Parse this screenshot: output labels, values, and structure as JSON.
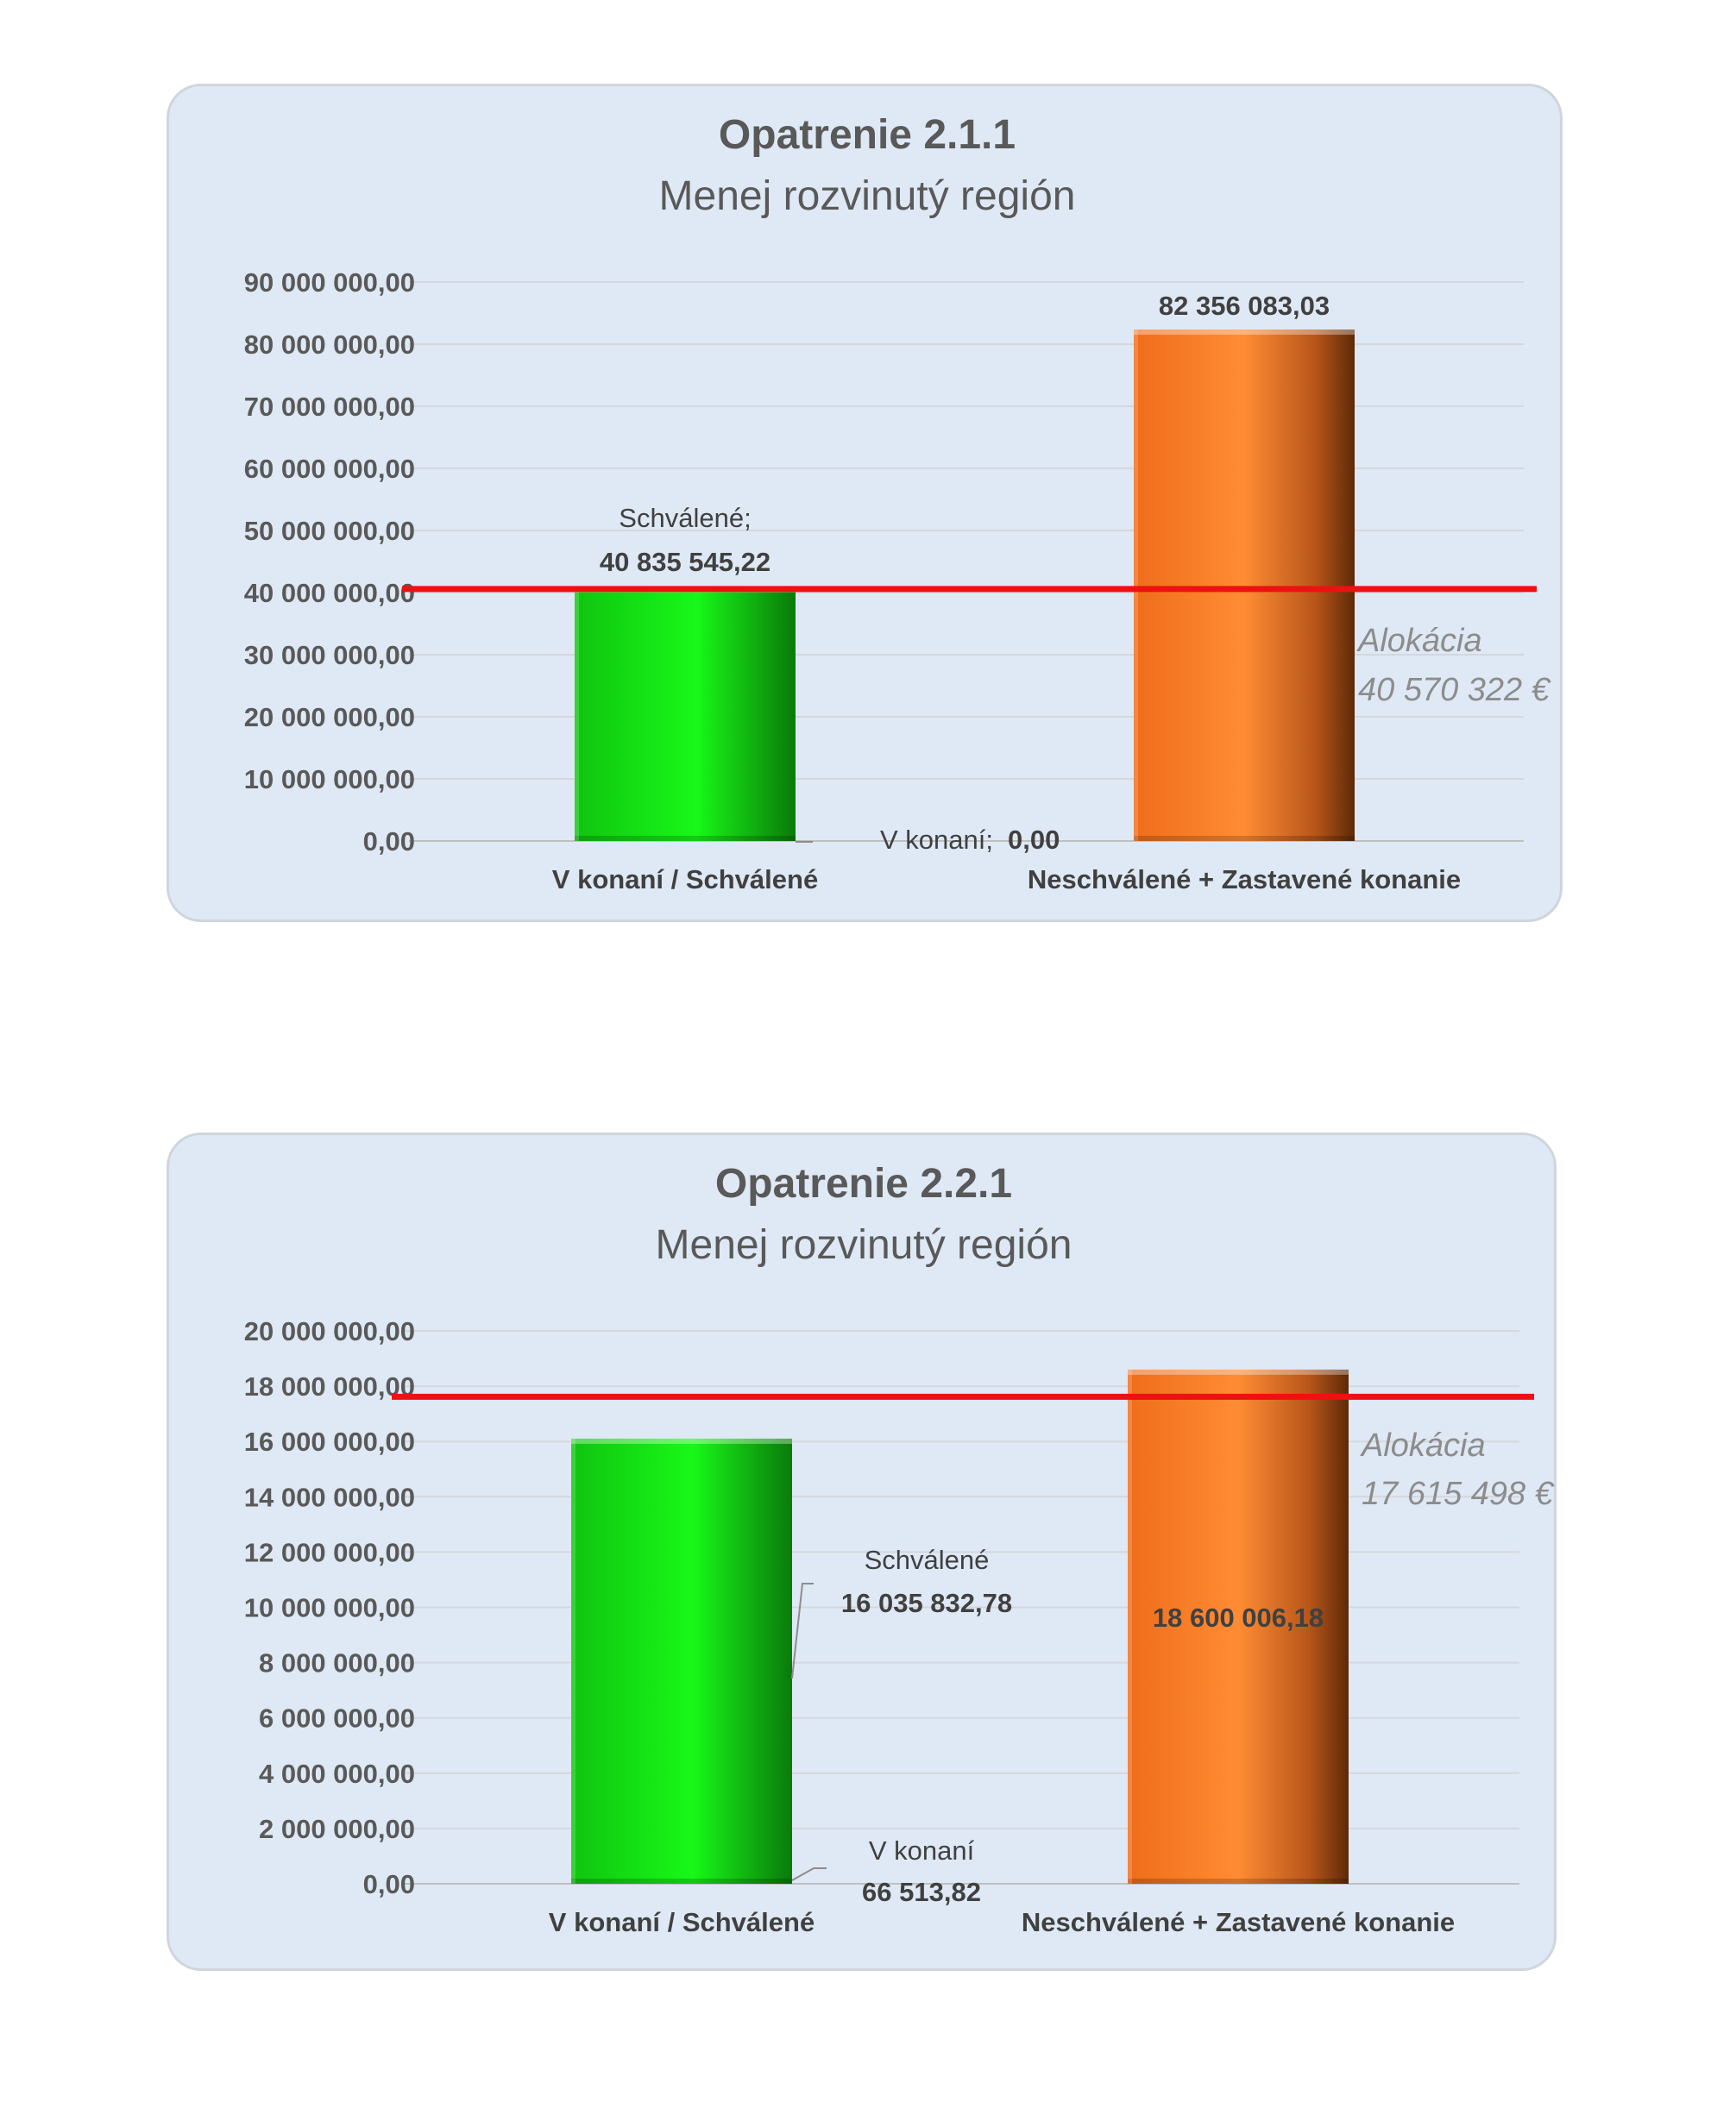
{
  "chart_data": [
    {
      "type": "bar",
      "title": "Opatrenie 2.1.1",
      "subtitle": "Menej rozvinutý región",
      "categories": [
        "V konaní / Schválené",
        "Neschválené + Zastavené konanie"
      ],
      "series": [
        {
          "name": "Schválené",
          "values": [
            40835545.22,
            null
          ],
          "color": "#16f010"
        },
        {
          "name": "V konaní",
          "values": [
            0.0,
            null
          ],
          "color": "#16f010"
        },
        {
          "name": "Neschválené + Zastavené konanie",
          "values": [
            null,
            82356083.03
          ],
          "color": "#f7822a"
        }
      ],
      "data_labels": {
        "schvalene_name": "Schválené;",
        "schvalene_value": "40 835 545,22",
        "vkonani_name": "V konaní;",
        "vkonani_value": "0,00",
        "neschvalene_value": "82 356 083,03"
      },
      "ylim": [
        0,
        90000000
      ],
      "y_ticks": [
        0,
        10000000,
        20000000,
        30000000,
        40000000,
        50000000,
        60000000,
        70000000,
        80000000,
        90000000
      ],
      "y_tick_labels": [
        "0,00",
        "10 000 000,00",
        "20 000 000,00",
        "30 000 000,00",
        "40 000 000,00",
        "50 000 000,00",
        "60 000 000,00",
        "70 000 000,00",
        "80 000 000,00",
        "90 000 000,00"
      ],
      "reference_line": {
        "value": 40570322,
        "label_line1": "Alokácia",
        "label_line2": "40 570 322 €",
        "color": "#ee1111"
      },
      "grid": true,
      "legend": "none"
    },
    {
      "type": "bar",
      "title": "Opatrenie 2.2.1",
      "subtitle": "Menej rozvinutý región",
      "categories": [
        "V konaní / Schválené",
        "Neschválené + Zastavené konanie"
      ],
      "series": [
        {
          "name": "Schválené",
          "values": [
            16035832.78,
            null
          ],
          "color": "#16f010"
        },
        {
          "name": "V konaní",
          "values": [
            66513.82,
            null
          ],
          "color": "#16f010"
        },
        {
          "name": "Neschválené + Zastavené konanie",
          "values": [
            null,
            18600006.18
          ],
          "color": "#f7822a"
        }
      ],
      "data_labels": {
        "schvalene_name": "Schválené",
        "schvalene_value": "16 035 832,78",
        "vkonani_name": "V konaní",
        "vkonani_value": "66 513,82",
        "neschvalene_value": "18 600 006,18"
      },
      "ylim": [
        0,
        20000000
      ],
      "y_ticks": [
        0,
        2000000,
        4000000,
        6000000,
        8000000,
        10000000,
        12000000,
        14000000,
        16000000,
        18000000,
        20000000
      ],
      "y_tick_labels": [
        "0,00",
        "2 000 000,00",
        "4 000 000,00",
        "6 000 000,00",
        "8 000 000,00",
        "10 000 000,00",
        "12 000 000,00",
        "14 000 000,00",
        "16 000 000,00",
        "18 000 000,00",
        "20 000 000,00"
      ],
      "reference_line": {
        "value": 17615498,
        "label_line1": "Alokácia",
        "label_line2": "17 615 498 €",
        "color": "#ee1111"
      },
      "grid": true,
      "legend": "none"
    }
  ]
}
